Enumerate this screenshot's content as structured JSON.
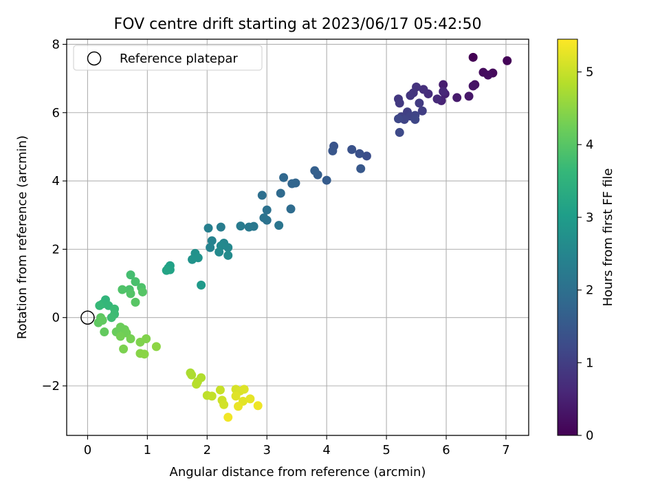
{
  "chart_data": {
    "type": "scatter",
    "title": "FOV centre drift starting at 2023/06/17 05:42:50",
    "xlabel": "Angular distance from reference (arcmin)",
    "ylabel": "Rotation from reference (arcmin)",
    "xlim": [
      -0.35,
      7.38
    ],
    "ylim": [
      -3.45,
      8.15
    ],
    "xticks": [
      0,
      1,
      2,
      3,
      4,
      5,
      6,
      7
    ],
    "yticks": [
      -2,
      0,
      2,
      4,
      6,
      8
    ],
    "grid": true,
    "legend": {
      "placement": "top-left",
      "label": "Reference platepar"
    },
    "reference_point": {
      "x": 0,
      "y": 0
    },
    "colorbar": {
      "label": "Hours from first FF file",
      "range": [
        0,
        5.45
      ],
      "ticks": [
        0,
        1,
        2,
        3,
        4,
        5
      ],
      "colormap": "viridis"
    },
    "series": [
      {
        "points": [
          [
            6.45,
            7.62,
            0.0
          ],
          [
            7.02,
            7.52,
            0.05
          ],
          [
            6.78,
            7.16,
            0.12
          ],
          [
            6.62,
            7.18,
            0.15
          ],
          [
            6.7,
            7.1,
            0.18
          ],
          [
            6.48,
            6.82,
            0.25
          ],
          [
            6.45,
            6.78,
            0.3
          ],
          [
            6.38,
            6.48,
            0.35
          ],
          [
            6.18,
            6.44,
            0.4
          ],
          [
            5.95,
            6.82,
            0.45
          ],
          [
            5.98,
            6.55,
            0.5
          ],
          [
            5.92,
            6.35,
            0.55
          ],
          [
            5.95,
            6.62,
            0.6
          ],
          [
            5.85,
            6.4,
            0.65
          ],
          [
            5.7,
            6.55,
            0.7
          ],
          [
            5.62,
            6.68,
            0.75
          ],
          [
            5.5,
            6.75,
            0.8
          ],
          [
            5.45,
            6.58,
            0.82
          ],
          [
            5.4,
            6.5,
            0.85
          ],
          [
            5.2,
            6.4,
            0.88
          ],
          [
            5.22,
            6.28,
            0.92
          ],
          [
            5.55,
            6.28,
            0.95
          ],
          [
            5.6,
            6.05,
            1.0
          ],
          [
            5.35,
            6.02,
            1.02
          ],
          [
            5.25,
            5.88,
            1.05
          ],
          [
            5.4,
            5.9,
            1.08
          ],
          [
            5.48,
            5.92,
            1.1
          ],
          [
            5.3,
            5.8,
            1.12
          ],
          [
            5.48,
            5.8,
            1.15
          ],
          [
            5.2,
            5.82,
            1.18
          ],
          [
            5.22,
            5.42,
            1.22
          ],
          [
            4.67,
            4.73,
            1.3
          ],
          [
            4.55,
            4.8,
            1.35
          ],
          [
            4.42,
            4.92,
            1.38
          ],
          [
            4.12,
            5.02,
            1.42
          ],
          [
            4.1,
            4.88,
            1.45
          ],
          [
            4.57,
            4.36,
            1.5
          ],
          [
            4.0,
            4.02,
            1.58
          ],
          [
            3.85,
            4.18,
            1.62
          ],
          [
            3.8,
            4.3,
            1.65
          ],
          [
            3.48,
            3.94,
            1.75
          ],
          [
            3.42,
            3.92,
            1.78
          ],
          [
            3.28,
            4.1,
            1.82
          ],
          [
            3.23,
            3.64,
            1.88
          ],
          [
            3.4,
            3.18,
            1.92
          ],
          [
            2.92,
            3.58,
            1.98
          ],
          [
            3.0,
            3.15,
            2.02
          ],
          [
            3.0,
            2.85,
            2.05
          ],
          [
            2.95,
            2.92,
            2.08
          ],
          [
            3.2,
            2.7,
            2.12
          ],
          [
            2.78,
            2.67,
            2.2
          ],
          [
            2.7,
            2.65,
            2.22
          ],
          [
            2.56,
            2.68,
            2.25
          ],
          [
            2.23,
            2.65,
            2.3
          ],
          [
            2.02,
            2.62,
            2.35
          ],
          [
            2.08,
            2.25,
            2.42
          ],
          [
            2.05,
            2.05,
            2.45
          ],
          [
            2.28,
            2.18,
            2.5
          ],
          [
            2.35,
            2.05,
            2.55
          ],
          [
            2.23,
            2.1,
            2.58
          ],
          [
            2.2,
            1.92,
            2.6
          ],
          [
            2.35,
            1.82,
            2.62
          ],
          [
            1.8,
            1.88,
            2.75
          ],
          [
            1.85,
            1.75,
            2.78
          ],
          [
            1.75,
            1.7,
            2.8
          ],
          [
            1.9,
            0.95,
            2.95
          ],
          [
            1.38,
            1.52,
            3.1
          ],
          [
            1.35,
            1.45,
            3.12
          ],
          [
            1.38,
            1.4,
            3.15
          ],
          [
            1.32,
            1.38,
            3.18
          ],
          [
            0.3,
            0.52,
            3.55
          ],
          [
            0.25,
            0.4,
            3.6
          ],
          [
            0.35,
            0.35,
            3.62
          ],
          [
            0.2,
            0.35,
            3.65
          ],
          [
            0.45,
            0.25,
            3.7
          ],
          [
            0.45,
            0.1,
            3.72
          ],
          [
            0.4,
            0.0,
            3.75
          ],
          [
            0.72,
            1.25,
            3.8
          ],
          [
            0.8,
            1.05,
            3.85
          ],
          [
            0.7,
            0.82,
            3.88
          ],
          [
            0.9,
            0.88,
            3.9
          ],
          [
            0.58,
            0.82,
            3.92
          ],
          [
            0.72,
            0.7,
            3.95
          ],
          [
            0.92,
            0.75,
            3.98
          ],
          [
            0.8,
            0.45,
            4.0
          ],
          [
            0.22,
            0.0,
            4.05
          ],
          [
            0.18,
            -0.15,
            4.08
          ],
          [
            0.25,
            -0.08,
            4.1
          ],
          [
            0.28,
            -0.42,
            4.12
          ],
          [
            0.48,
            -0.42,
            4.18
          ],
          [
            0.55,
            -0.28,
            4.2
          ],
          [
            0.62,
            -0.35,
            4.22
          ],
          [
            0.65,
            -0.45,
            4.25
          ],
          [
            0.55,
            -0.55,
            4.28
          ],
          [
            0.72,
            -0.62,
            4.3
          ],
          [
            0.6,
            -0.92,
            4.35
          ],
          [
            0.88,
            -0.72,
            4.38
          ],
          [
            0.98,
            -0.62,
            4.4
          ],
          [
            0.88,
            -1.05,
            4.45
          ],
          [
            0.95,
            -1.07,
            4.48
          ],
          [
            1.15,
            -0.85,
            4.5
          ],
          [
            1.72,
            -1.62,
            4.75
          ],
          [
            1.74,
            -1.68,
            4.78
          ],
          [
            1.9,
            -1.76,
            4.8
          ],
          [
            1.84,
            -1.88,
            4.82
          ],
          [
            1.82,
            -1.95,
            4.85
          ],
          [
            2.0,
            -2.28,
            4.92
          ],
          [
            2.08,
            -2.3,
            4.95
          ],
          [
            2.22,
            -2.12,
            5.0
          ],
          [
            2.25,
            -2.42,
            5.05
          ],
          [
            2.28,
            -2.55,
            5.08
          ],
          [
            2.48,
            -2.1,
            5.12
          ],
          [
            2.55,
            -2.15,
            5.15
          ],
          [
            2.62,
            -2.1,
            5.18
          ],
          [
            2.48,
            -2.3,
            5.2
          ],
          [
            2.6,
            -2.45,
            5.22
          ],
          [
            2.72,
            -2.38,
            5.25
          ],
          [
            2.52,
            -2.6,
            5.28
          ],
          [
            2.85,
            -2.58,
            5.32
          ],
          [
            2.35,
            -2.92,
            5.35
          ]
        ]
      }
    ]
  }
}
